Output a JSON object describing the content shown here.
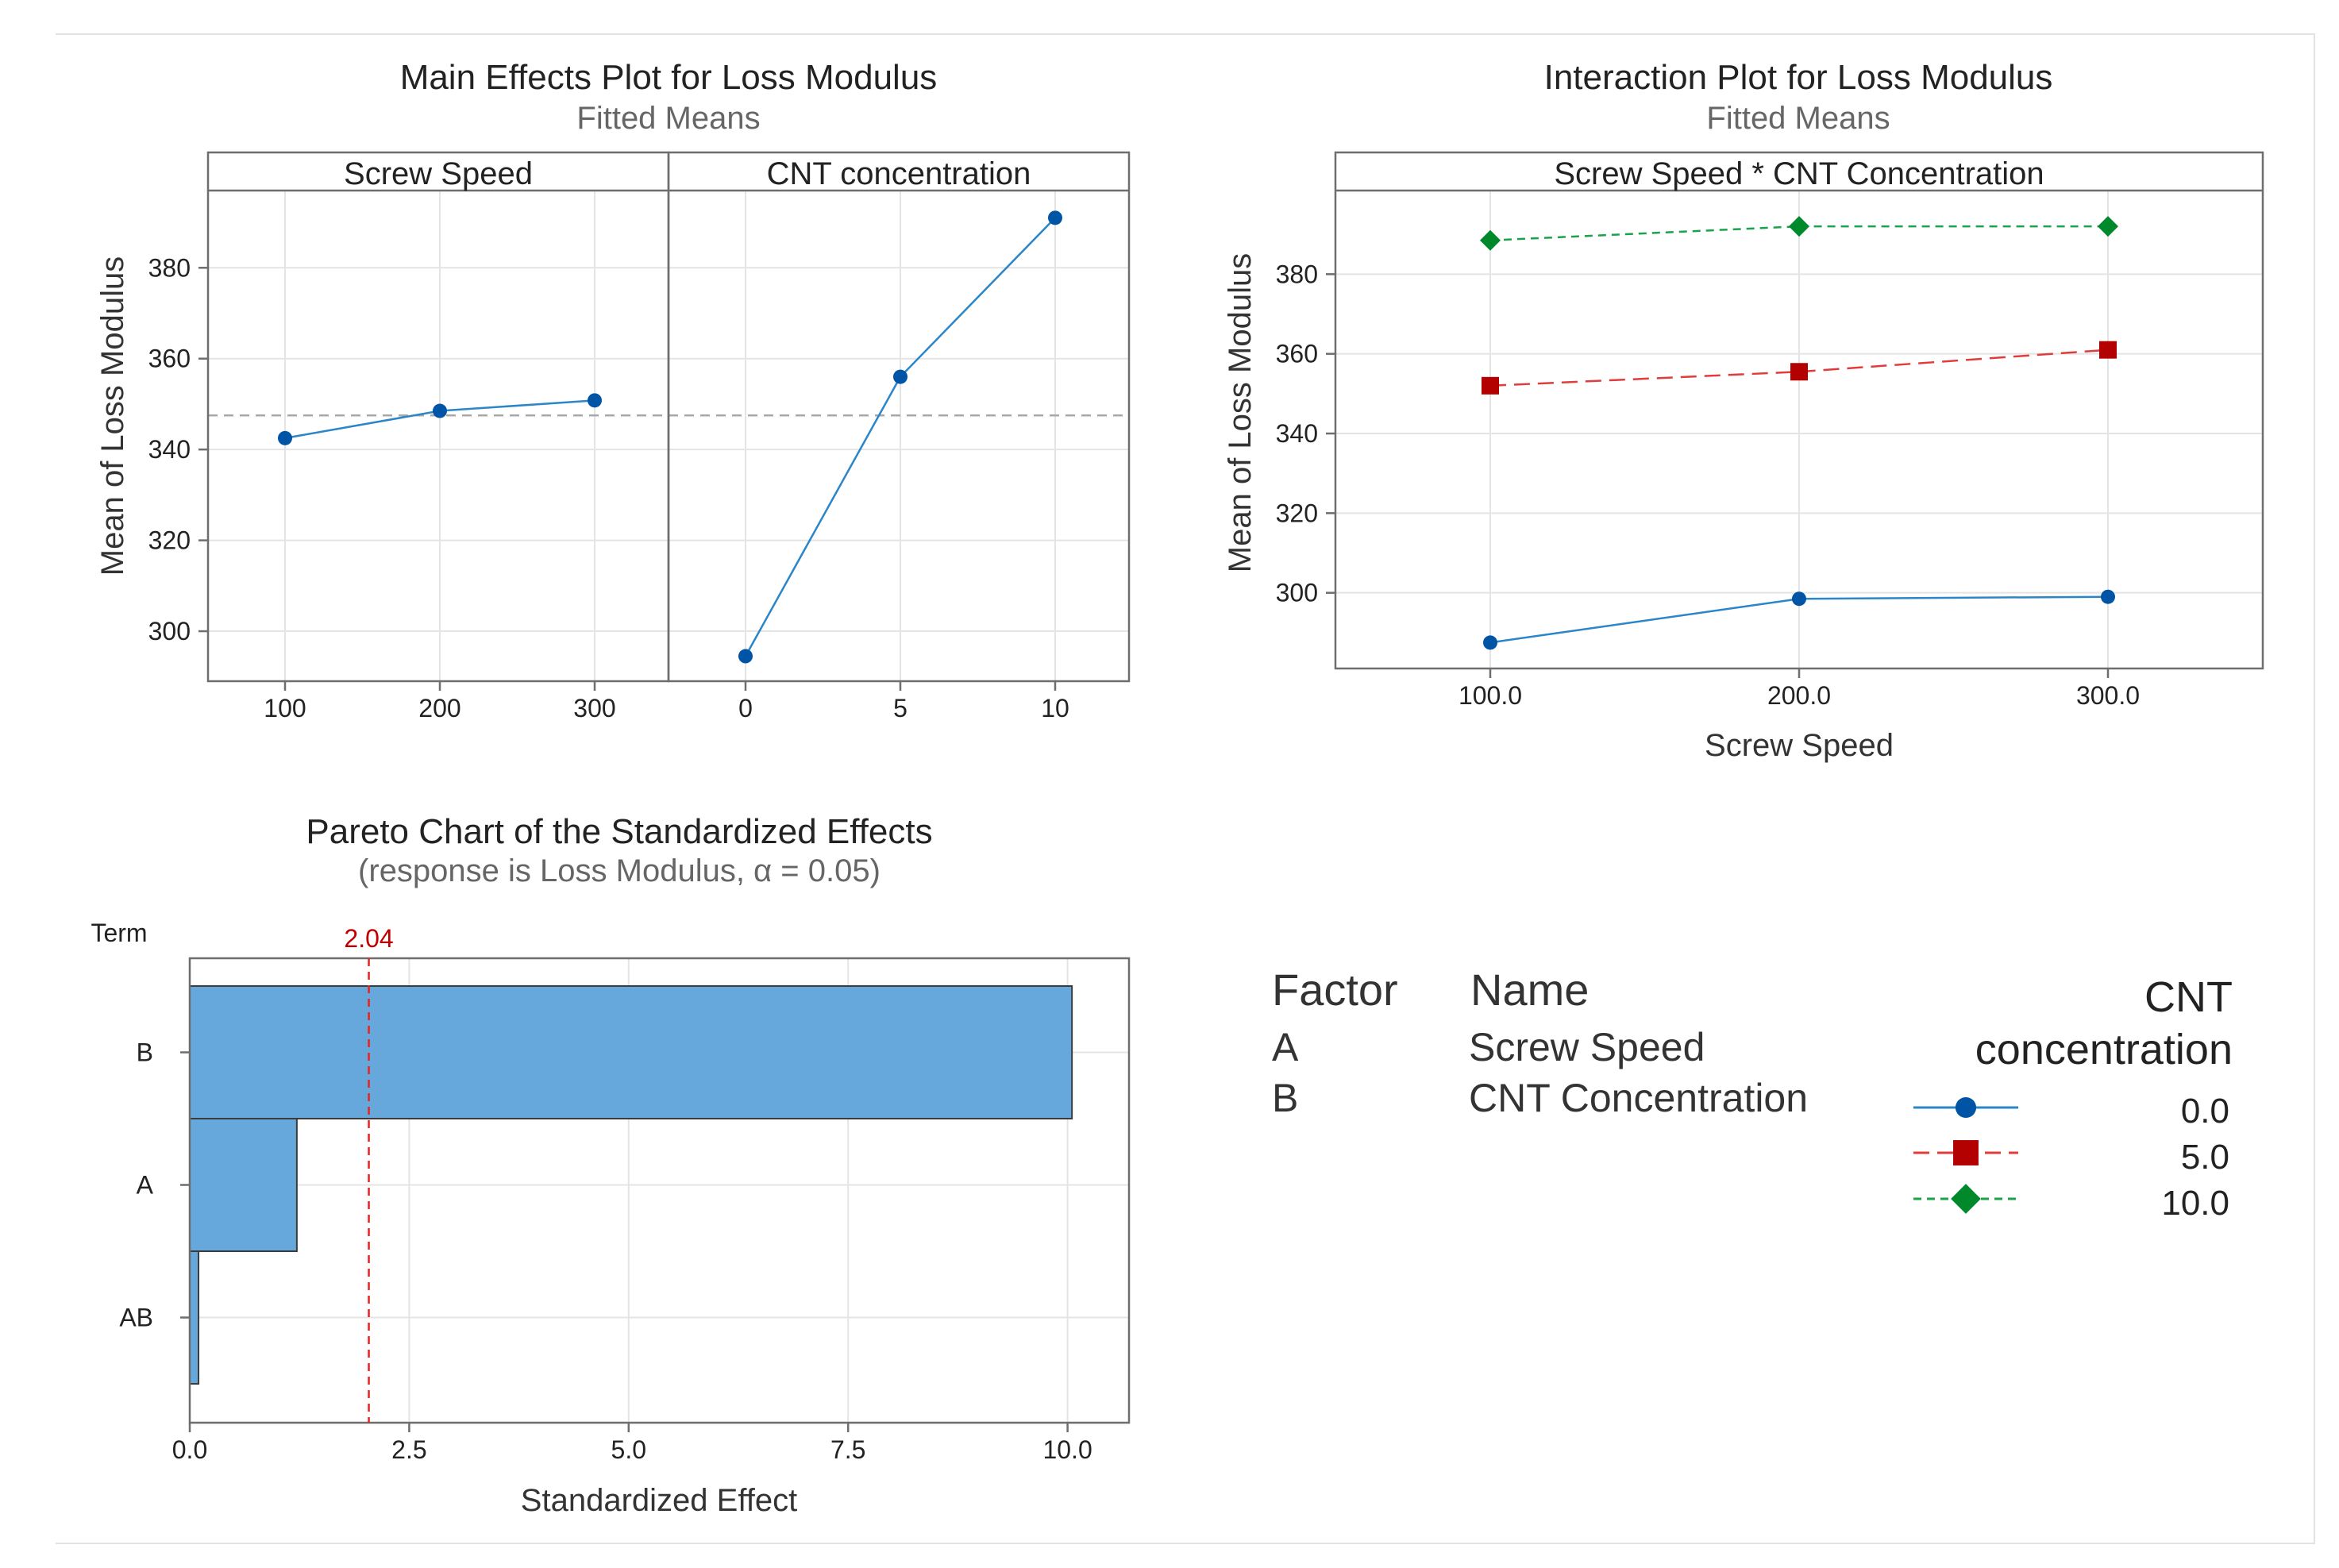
{
  "colors": {
    "blue": "#0054a6",
    "red": "#b30000",
    "green": "#00892b",
    "bar_fill": "#66a8dc",
    "ref_line": "#e8231d",
    "ref_label": "#c00000",
    "grid": "#e4e4e4",
    "mean_line": "#a8a8a8"
  },
  "chart_data": [
    {
      "id": "main-effects",
      "type": "line",
      "title": "Main Effects Plot for Loss Modulus",
      "subtitle": "Fitted Means",
      "ylabel": "Mean of Loss Modulus",
      "ylim": [
        289,
        397
      ],
      "yticks": [
        300,
        320,
        340,
        360,
        380
      ],
      "overall_mean": 347.5,
      "panels": [
        {
          "label": "Screw Speed",
          "categories": [
            "100",
            "200",
            "300"
          ],
          "values": [
            342.5,
            348.5,
            350.8
          ]
        },
        {
          "label": "CNT concentration",
          "categories": [
            "0",
            "5",
            "10"
          ],
          "values": [
            294.5,
            356.0,
            391.0
          ]
        }
      ]
    },
    {
      "id": "interaction",
      "type": "line",
      "title": "Interaction Plot for Loss Modulus",
      "subtitle": "Fitted Means",
      "panel_label": "Screw Speed * CNT Concentration",
      "xlabel": "Screw Speed",
      "ylabel": "Mean of Loss Modulus",
      "categories": [
        "100.0",
        "200.0",
        "300.0"
      ],
      "ylim": [
        281,
        401
      ],
      "yticks": [
        300,
        320,
        340,
        360,
        380
      ],
      "series": [
        {
          "name": "0.0",
          "marker": "circle",
          "dash": "solid",
          "values": [
            287.5,
            298.5,
            299.0
          ]
        },
        {
          "name": "5.0",
          "marker": "square",
          "dash": "longdash",
          "values": [
            352.0,
            355.5,
            361.0
          ]
        },
        {
          "name": "10.0",
          "marker": "diamond",
          "dash": "shortdash",
          "values": [
            388.5,
            392.0,
            392.0
          ]
        }
      ]
    },
    {
      "id": "pareto",
      "type": "bar",
      "orientation": "horizontal",
      "title": "Pareto Chart of the Standardized Effects",
      "subtitle": "(response is Loss Modulus, α = 0.05)",
      "term_label": "Term",
      "xlabel": "Standardized Effect",
      "categories": [
        "B",
        "A",
        "AB"
      ],
      "values": [
        10.05,
        1.22,
        0.1
      ],
      "xlim": [
        0,
        10.7
      ],
      "xticks": [
        "0.0",
        "2.5",
        "5.0",
        "7.5",
        "10.0"
      ],
      "reference": {
        "value": 2.04,
        "label": "2.04"
      }
    }
  ],
  "factor_table": {
    "header_factor": "Factor",
    "header_name": "Name",
    "rows": [
      {
        "factor": "A",
        "name": "Screw Speed"
      },
      {
        "factor": "B",
        "name": "CNT Concentration"
      }
    ]
  },
  "legend": {
    "title_line1": "CNT",
    "title_line2": "concentration",
    "entries": [
      "0.0",
      "5.0",
      "10.0"
    ]
  }
}
